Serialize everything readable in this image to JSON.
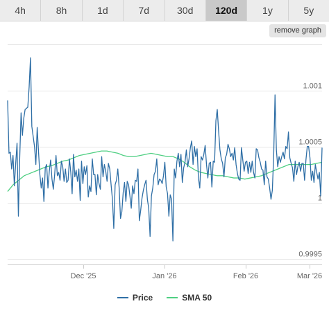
{
  "tabs": [
    {
      "label": "4h",
      "active": false
    },
    {
      "label": "8h",
      "active": false
    },
    {
      "label": "1d",
      "active": false
    },
    {
      "label": "7d",
      "active": false
    },
    {
      "label": "30d",
      "active": false
    },
    {
      "label": "120d",
      "active": true
    },
    {
      "label": "1y",
      "active": false
    },
    {
      "label": "5y",
      "active": false
    }
  ],
  "remove_graph_label": "remove graph",
  "colors": {
    "price": "#2f6fa6",
    "sma": "#4ecf82"
  },
  "chart_data": {
    "type": "line",
    "title": "",
    "xlabel": "",
    "ylabel": "",
    "x_tick_labels": [
      "Dec '25",
      "Jan '26",
      "Feb '26",
      "Mar '26"
    ],
    "y_tick_labels": [
      "0.9995",
      "1",
      "1.0005",
      "1.001"
    ],
    "ylim": [
      0.99945,
      1.00141
    ],
    "y_ticks": [
      0.9995,
      1.0,
      1.0005,
      1.001
    ],
    "grid": "horizontal",
    "legend_position": "bottom",
    "series": [
      {
        "name": "Price",
        "values": [
          1.00091,
          1.00044,
          1.00045,
          1.0003,
          1.00042,
          1.00015,
          1.00035,
          1.00053,
          0.99988,
          1.0004,
          1.0008,
          1.0006,
          1.00075,
          1.00083,
          1.00084,
          1.00085,
          1.00103,
          1.00129,
          1.00068,
          1.00059,
          1.0005,
          1.00034,
          1.00067,
          1.00045,
          1.00025,
          1.00013,
          1.00022,
          1.00001,
          1.00031,
          1.00034,
          1.00013,
          1.00028,
          1.00038,
          1.00021,
          1.00012,
          1.00025,
          1.00042,
          1.00024,
          1.00027,
          1.0002,
          1.00037,
          1.00032,
          1.00019,
          1.0003,
          1.00018,
          1.0002,
          1.00039,
          1.00027,
          1.00008,
          1.00043,
          1.00023,
          1.00029,
          1.00019,
          1.0003,
          1.00002,
          1.00037,
          1.00017,
          1.00032,
          1.00025,
          1.00033,
          1.00005,
          1.00015,
          1.0001,
          1.00039,
          1.00025,
          1.00025,
          1.00007,
          1.00025,
          1.00017,
          1.00012,
          1.00041,
          1.00023,
          1.00034,
          1.00028,
          1.00019,
          1.00035,
          1.0003,
          1.00016,
          1.00003,
          0.99977,
          1.00016,
          1.0002,
          1.0003,
          1.00013,
          0.99986,
          0.99992,
          1.00009,
          1.00018,
          1.00001,
          1.00019,
          1.00016,
          1.00006,
          0.99995,
          1.00015,
          1.00008,
          1.0002,
          1.00019,
          1.0003,
          0.99984,
          0.99993,
          1.00004,
          1.00011,
          1.00016,
          1.0002,
          1.00003,
          0.99995,
          0.9997,
          1.00006,
          1.00013,
          1.00025,
          1.00028,
          1.00039,
          1.00016,
          1.00021,
          1.0002,
          1.00017,
          1.00024,
          1.00036,
          1.00014,
          1.00008,
          0.99988,
          1.00007,
          1.00003,
          0.99966,
          1.0003,
          1.00022,
          1.00037,
          1.00044,
          1.00032,
          1.00043,
          1.00018,
          1.00031,
          1.00036,
          1.00047,
          1.00032,
          1.00039,
          1.00049,
          1.00055,
          1.00034,
          1.0005,
          1.00041,
          1.00048,
          1.00022,
          1.00013,
          1.00041,
          1.00038,
          1.00043,
          1.00051,
          1.00034,
          1.00022,
          1.00035,
          1.00036,
          1.00014,
          1.00037,
          1.00036,
          1.00073,
          1.00083,
          1.00064,
          1.00047,
          1.00039,
          1.00035,
          1.00023,
          1.0004,
          1.00043,
          1.00052,
          1.00048,
          1.00041,
          1.00044,
          1.00038,
          1.00049,
          1.00034,
          1.00026,
          1.00021,
          1.0002,
          1.00049,
          1.00038,
          1.00028,
          1.00036,
          1.00037,
          1.00026,
          1.00036,
          1.00027,
          1.00037,
          1.00027,
          1.00022,
          1.00048,
          1.00047,
          1.0004,
          1.00036,
          1.0003,
          1.00029,
          1.00016,
          1.00037,
          1.00023,
          1.00021,
          1.00013,
          1.00003,
          1.00011,
          1.00042,
          1.00096,
          1.00047,
          1.00032,
          1.00041,
          1.00036,
          1.00041,
          1.00045,
          1.00039,
          1.0005,
          1.00048,
          1.00063,
          1.0004,
          1.00035,
          1.00031,
          1.00019,
          1.00037,
          1.00025,
          1.00032,
          1.00036,
          1.00028,
          1.00035,
          1.00035,
          1.0002,
          1.00038,
          1.0005,
          1.0005,
          1.0004,
          1.0002,
          1.00028,
          1.00018,
          1.00034,
          1.00027,
          1.00021,
          1.00027,
          1.00006,
          1.00049
        ],
        "color_key": "price"
      },
      {
        "name": "SMA 50",
        "values": [
          1.0001,
          1.00016,
          1.0002,
          1.00024,
          1.00026,
          1.00028,
          1.0003,
          1.00032,
          1.00033,
          1.00035,
          1.00037,
          1.00038,
          1.0004,
          1.00042,
          1.00043,
          1.00044,
          1.00045,
          1.00046,
          1.00046,
          1.00045,
          1.00044,
          1.00042,
          1.00041,
          1.00041,
          1.00042,
          1.00043,
          1.00044,
          1.00043,
          1.00042,
          1.00041,
          1.00041,
          1.00039,
          1.00036,
          1.00032,
          1.00029,
          1.00027,
          1.00026,
          1.00025,
          1.00024,
          1.00024,
          1.00023,
          1.00022,
          1.00022,
          1.00021,
          1.00022,
          1.00023,
          1.00024,
          1.00026,
          1.00028,
          1.0003,
          1.00032,
          1.00034,
          1.00034,
          1.00034,
          1.00034,
          1.00034,
          1.00035,
          1.00036
        ],
        "color_key": "sma"
      }
    ]
  }
}
